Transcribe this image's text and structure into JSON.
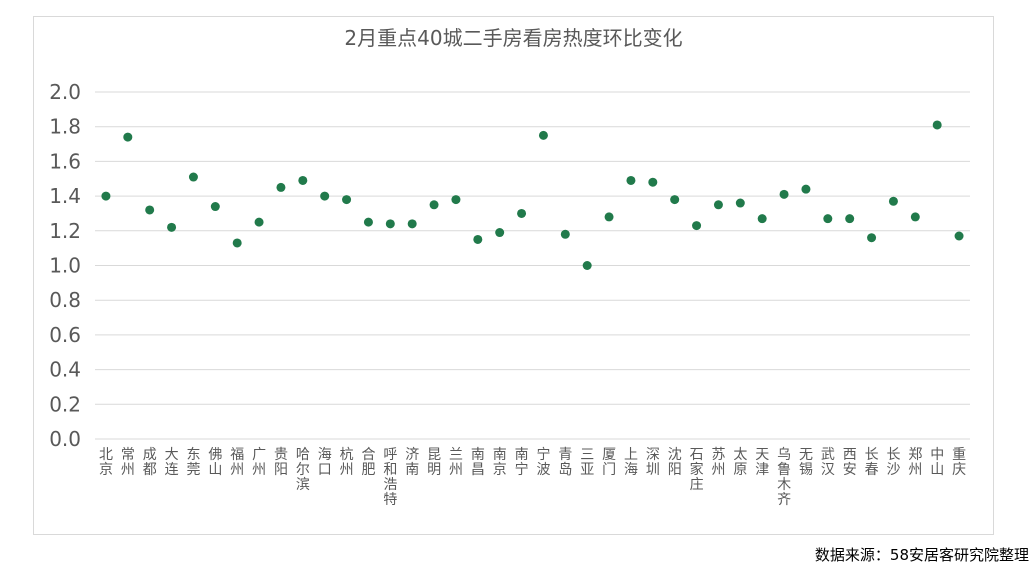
{
  "chart_data": {
    "type": "scatter",
    "title": "2月重点40城二手房看房热度环比变化",
    "xlabel": "",
    "ylabel": "",
    "ylim": [
      0.0,
      2.0
    ],
    "yticks": [
      "0.0",
      "0.2",
      "0.4",
      "0.6",
      "0.8",
      "1.0",
      "1.2",
      "1.4",
      "1.6",
      "1.8",
      "2.0"
    ],
    "grid": true,
    "legend": "none",
    "marker_color": "#217a4b",
    "categories": [
      "北京",
      "常州",
      "成都",
      "大连",
      "东莞",
      "佛山",
      "福州",
      "广州",
      "贵阳",
      "哈尔滨",
      "海口",
      "杭州",
      "合肥",
      "呼和浩特",
      "济南",
      "昆明",
      "兰州",
      "南昌",
      "南京",
      "南宁",
      "宁波",
      "青岛",
      "三亚",
      "厦门",
      "上海",
      "深圳",
      "沈阳",
      "石家庄",
      "苏州",
      "太原",
      "天津",
      "乌鲁木齐",
      "无锡",
      "武汉",
      "西安",
      "长春",
      "长沙",
      "郑州",
      "中山",
      "重庆"
    ],
    "values": [
      1.4,
      1.74,
      1.32,
      1.22,
      1.51,
      1.34,
      1.13,
      1.25,
      1.45,
      1.49,
      1.4,
      1.38,
      1.25,
      1.24,
      1.24,
      1.35,
      1.38,
      1.15,
      1.19,
      1.3,
      1.75,
      1.18,
      1.0,
      1.28,
      1.49,
      1.48,
      1.38,
      1.23,
      1.35,
      1.36,
      1.27,
      1.41,
      1.44,
      1.27,
      1.27,
      1.16,
      1.37,
      1.28,
      1.81,
      1.17
    ]
  },
  "source": "数据来源：58安居客研究院整理"
}
